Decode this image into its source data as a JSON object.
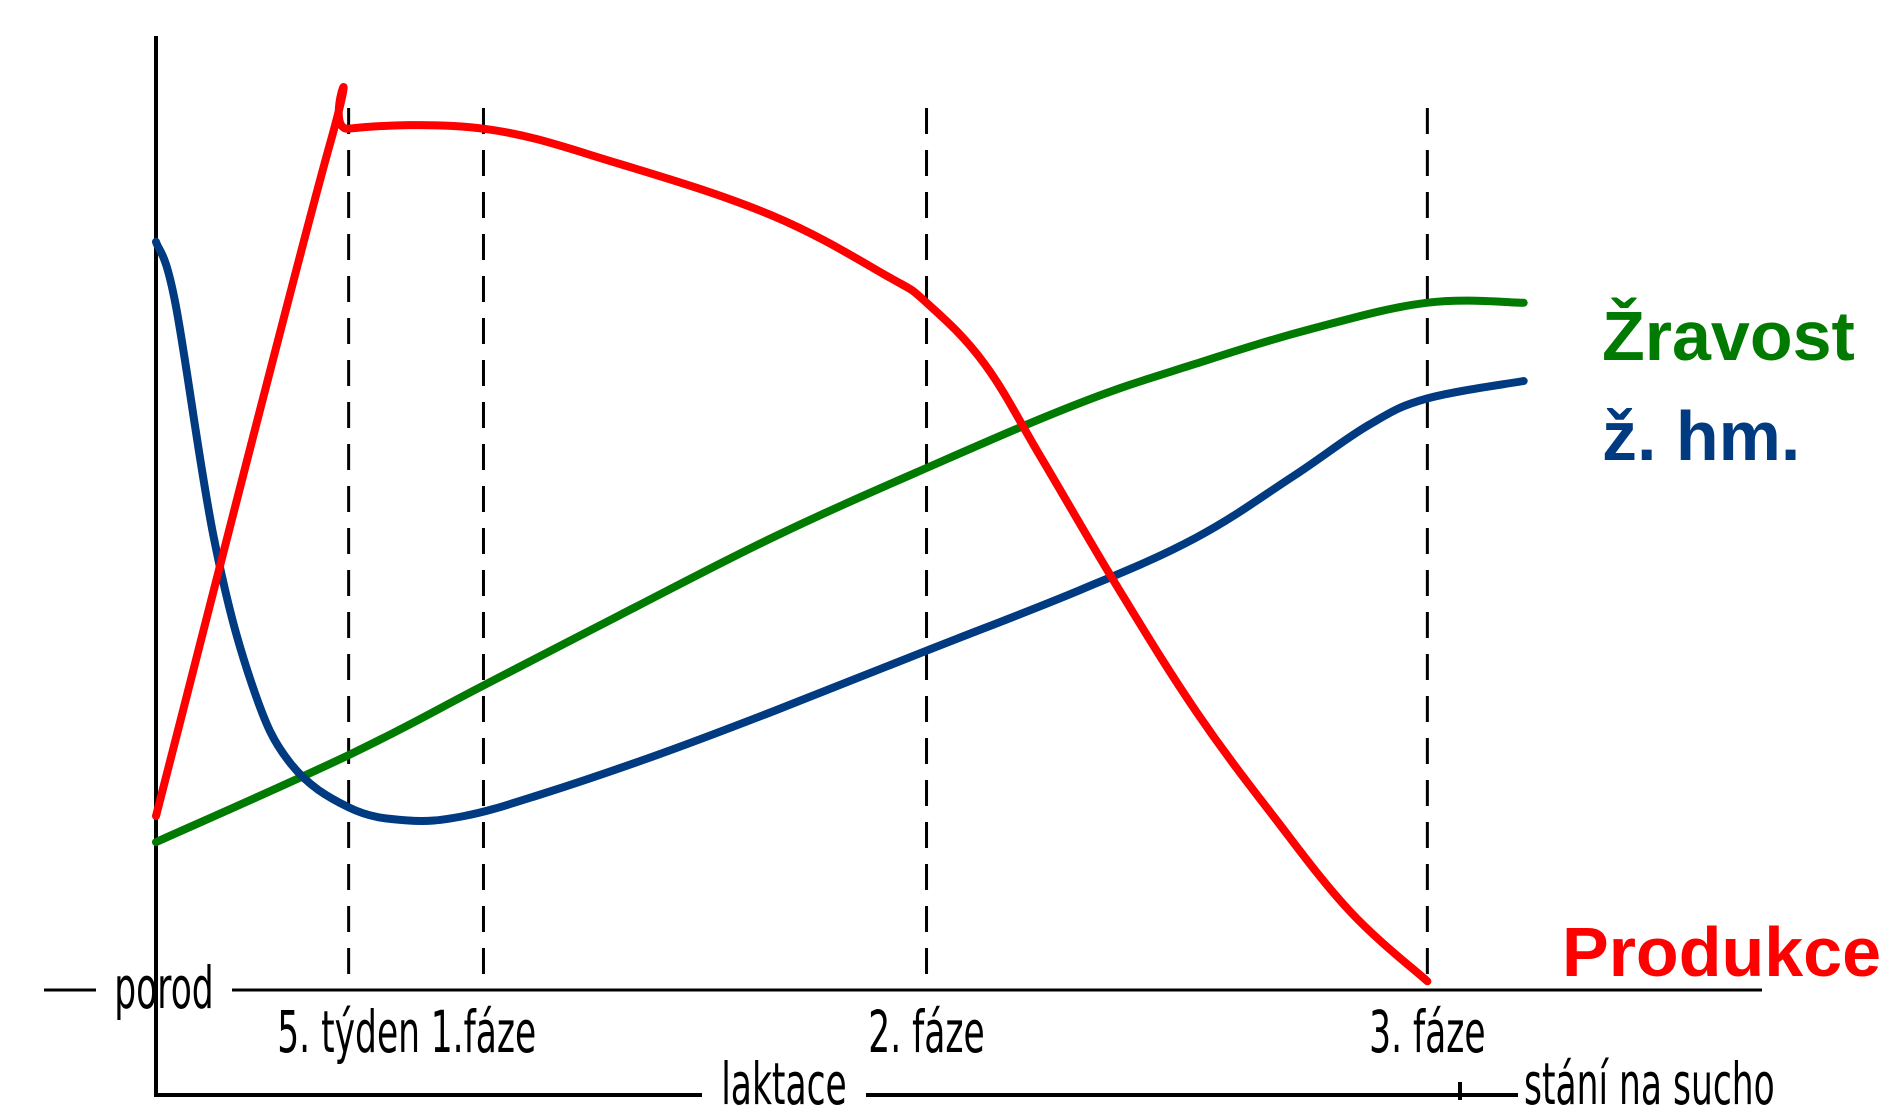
{
  "chart_data": {
    "type": "line",
    "xlabel": "laktace",
    "ylabel": "",
    "grid": false,
    "axis_labels": {
      "origin": "porod",
      "period_main": "laktace",
      "period_dry": "stání na sucho"
    },
    "phase_markers": [
      {
        "x": 5,
        "label": "5. týden"
      },
      {
        "x": 8.5,
        "label": "1.fáze"
      },
      {
        "x": 20,
        "label": "2. fáze"
      },
      {
        "x": 33,
        "label": "3. fáze"
      }
    ],
    "xlim": [
      0,
      38
    ],
    "ylim": [
      0,
      100
    ],
    "series": [
      {
        "name": "Produkce",
        "color": "#ff0000",
        "x": [
          0,
          4.5,
          5,
          8.5,
          12,
          16,
          19,
          20,
          21.5,
          23,
          25,
          27,
          29,
          31,
          33
        ],
        "y": [
          20,
          97,
          99,
          99,
          95,
          89,
          82,
          79,
          72,
          61,
          46,
          32,
          20,
          9,
          1
        ]
      },
      {
        "name": "Žravost",
        "color": "#007a00",
        "x": [
          0,
          5,
          8.5,
          12,
          16,
          20,
          24,
          27,
          30,
          33,
          35.5
        ],
        "y": [
          17,
          27,
          35,
          43,
          52,
          60,
          67.5,
          72,
          76,
          79,
          79
        ]
      },
      {
        "name": "ž. hm.",
        "color": "#003a80",
        "x": [
          0,
          0.5,
          1.5,
          2.5,
          3.5,
          5,
          6.5,
          8,
          10,
          13,
          16,
          20,
          24,
          27,
          29.5,
          31.5,
          33,
          35.5
        ],
        "y": [
          86,
          79,
          52,
          35,
          26,
          21,
          19.5,
          20,
          22.5,
          27,
          32,
          39,
          46,
          52,
          59,
          65,
          68,
          70
        ]
      }
    ]
  }
}
